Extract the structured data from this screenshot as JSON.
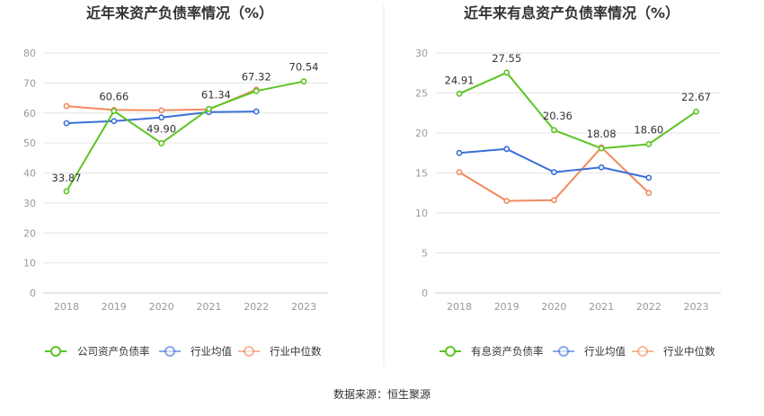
{
  "source_label": "数据来源：恒生聚源",
  "chart_data": [
    {
      "type": "line",
      "title": "近年来资产负债率情况（%）",
      "categories": [
        "2018",
        "2019",
        "2020",
        "2021",
        "2022",
        "2023"
      ],
      "ylim": [
        0,
        80
      ],
      "yticks": [
        0,
        10,
        20,
        30,
        40,
        50,
        60,
        70,
        80
      ],
      "grid": true,
      "legend_position": "bottom",
      "series": [
        {
          "name": "公司资产负债率",
          "color": "#5cc423",
          "labelled": true,
          "values": [
            33.87,
            60.66,
            49.9,
            61.34,
            67.32,
            70.54
          ],
          "labels": [
            "33.87",
            "60.66",
            "49.90",
            "61.34",
            "67.32",
            "70.54"
          ]
        },
        {
          "name": "行业均值",
          "color": "#3b6fd8",
          "labelled": false,
          "values": [
            56.6,
            57.3,
            58.5,
            60.3,
            60.5,
            null
          ]
        },
        {
          "name": "行业中位数",
          "color": "#f08a5d",
          "labelled": false,
          "values": [
            62.3,
            61.0,
            60.9,
            61.2,
            67.8,
            null
          ]
        }
      ]
    },
    {
      "type": "line",
      "title": "近年来有息资产负债率情况（%）",
      "categories": [
        "2018",
        "2019",
        "2020",
        "2021",
        "2022",
        "2023"
      ],
      "ylim": [
        0,
        30
      ],
      "yticks": [
        0,
        5,
        10,
        15,
        20,
        25,
        30
      ],
      "grid": true,
      "legend_position": "bottom",
      "series": [
        {
          "name": "有息资产负债率",
          "color": "#5cc423",
          "labelled": true,
          "values": [
            24.91,
            27.55,
            20.36,
            18.08,
            18.6,
            22.67
          ],
          "labels": [
            "24.91",
            "27.55",
            "20.36",
            "18.08",
            "18.60",
            "22.67"
          ]
        },
        {
          "name": "行业均值",
          "color": "#3b6fd8",
          "labelled": false,
          "values": [
            17.5,
            18.0,
            15.1,
            15.7,
            14.4,
            null
          ]
        },
        {
          "name": "行业中位数",
          "color": "#f08a5d",
          "labelled": false,
          "values": [
            15.1,
            11.5,
            11.6,
            18.2,
            12.5,
            null
          ]
        }
      ]
    }
  ]
}
